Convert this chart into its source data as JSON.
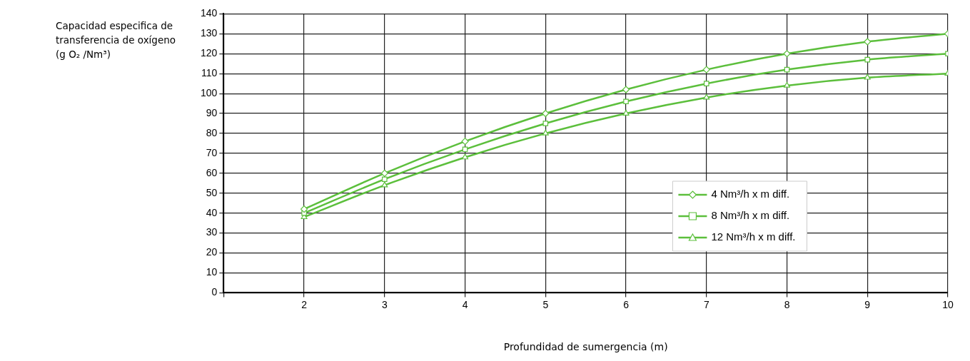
{
  "chart_data": {
    "type": "line",
    "xlabel": "Profundidad de sumergencia (m)",
    "ylabel": "Capacidad especifica de transferencia de oxígeno (g O₂ /Nm³)",
    "x": [
      2,
      3,
      4,
      5,
      6,
      7,
      8,
      9,
      10
    ],
    "xlim": [
      1,
      10
    ],
    "xticks": [
      {
        "value": 1,
        "label": null
      },
      2,
      3,
      4,
      5,
      6,
      7,
      8,
      9,
      10
    ],
    "ylim": [
      0,
      140
    ],
    "yticks": [
      0,
      10,
      20,
      30,
      40,
      50,
      60,
      70,
      80,
      90,
      100,
      110,
      120,
      130,
      140
    ],
    "grid": true,
    "legend": "right",
    "line_style": "solid",
    "series": [
      {
        "name": "4 Nm³/h x m diff.",
        "color": "#5cbf3c",
        "marker": "diamond",
        "values": [
          42,
          60,
          76,
          90,
          102,
          112,
          120,
          126,
          130
        ]
      },
      {
        "name": "8 Nm³/h x m diff.",
        "color": "#5cbf3c",
        "marker": "square",
        "values": [
          40,
          57,
          72,
          85,
          96,
          105,
          112,
          117,
          120
        ]
      },
      {
        "name": "12 Nm³/h x m diff.",
        "color": "#5cbf3c",
        "marker": "triangle",
        "values": [
          38,
          54,
          68,
          80,
          90,
          98,
          104,
          108,
          110
        ]
      }
    ]
  }
}
